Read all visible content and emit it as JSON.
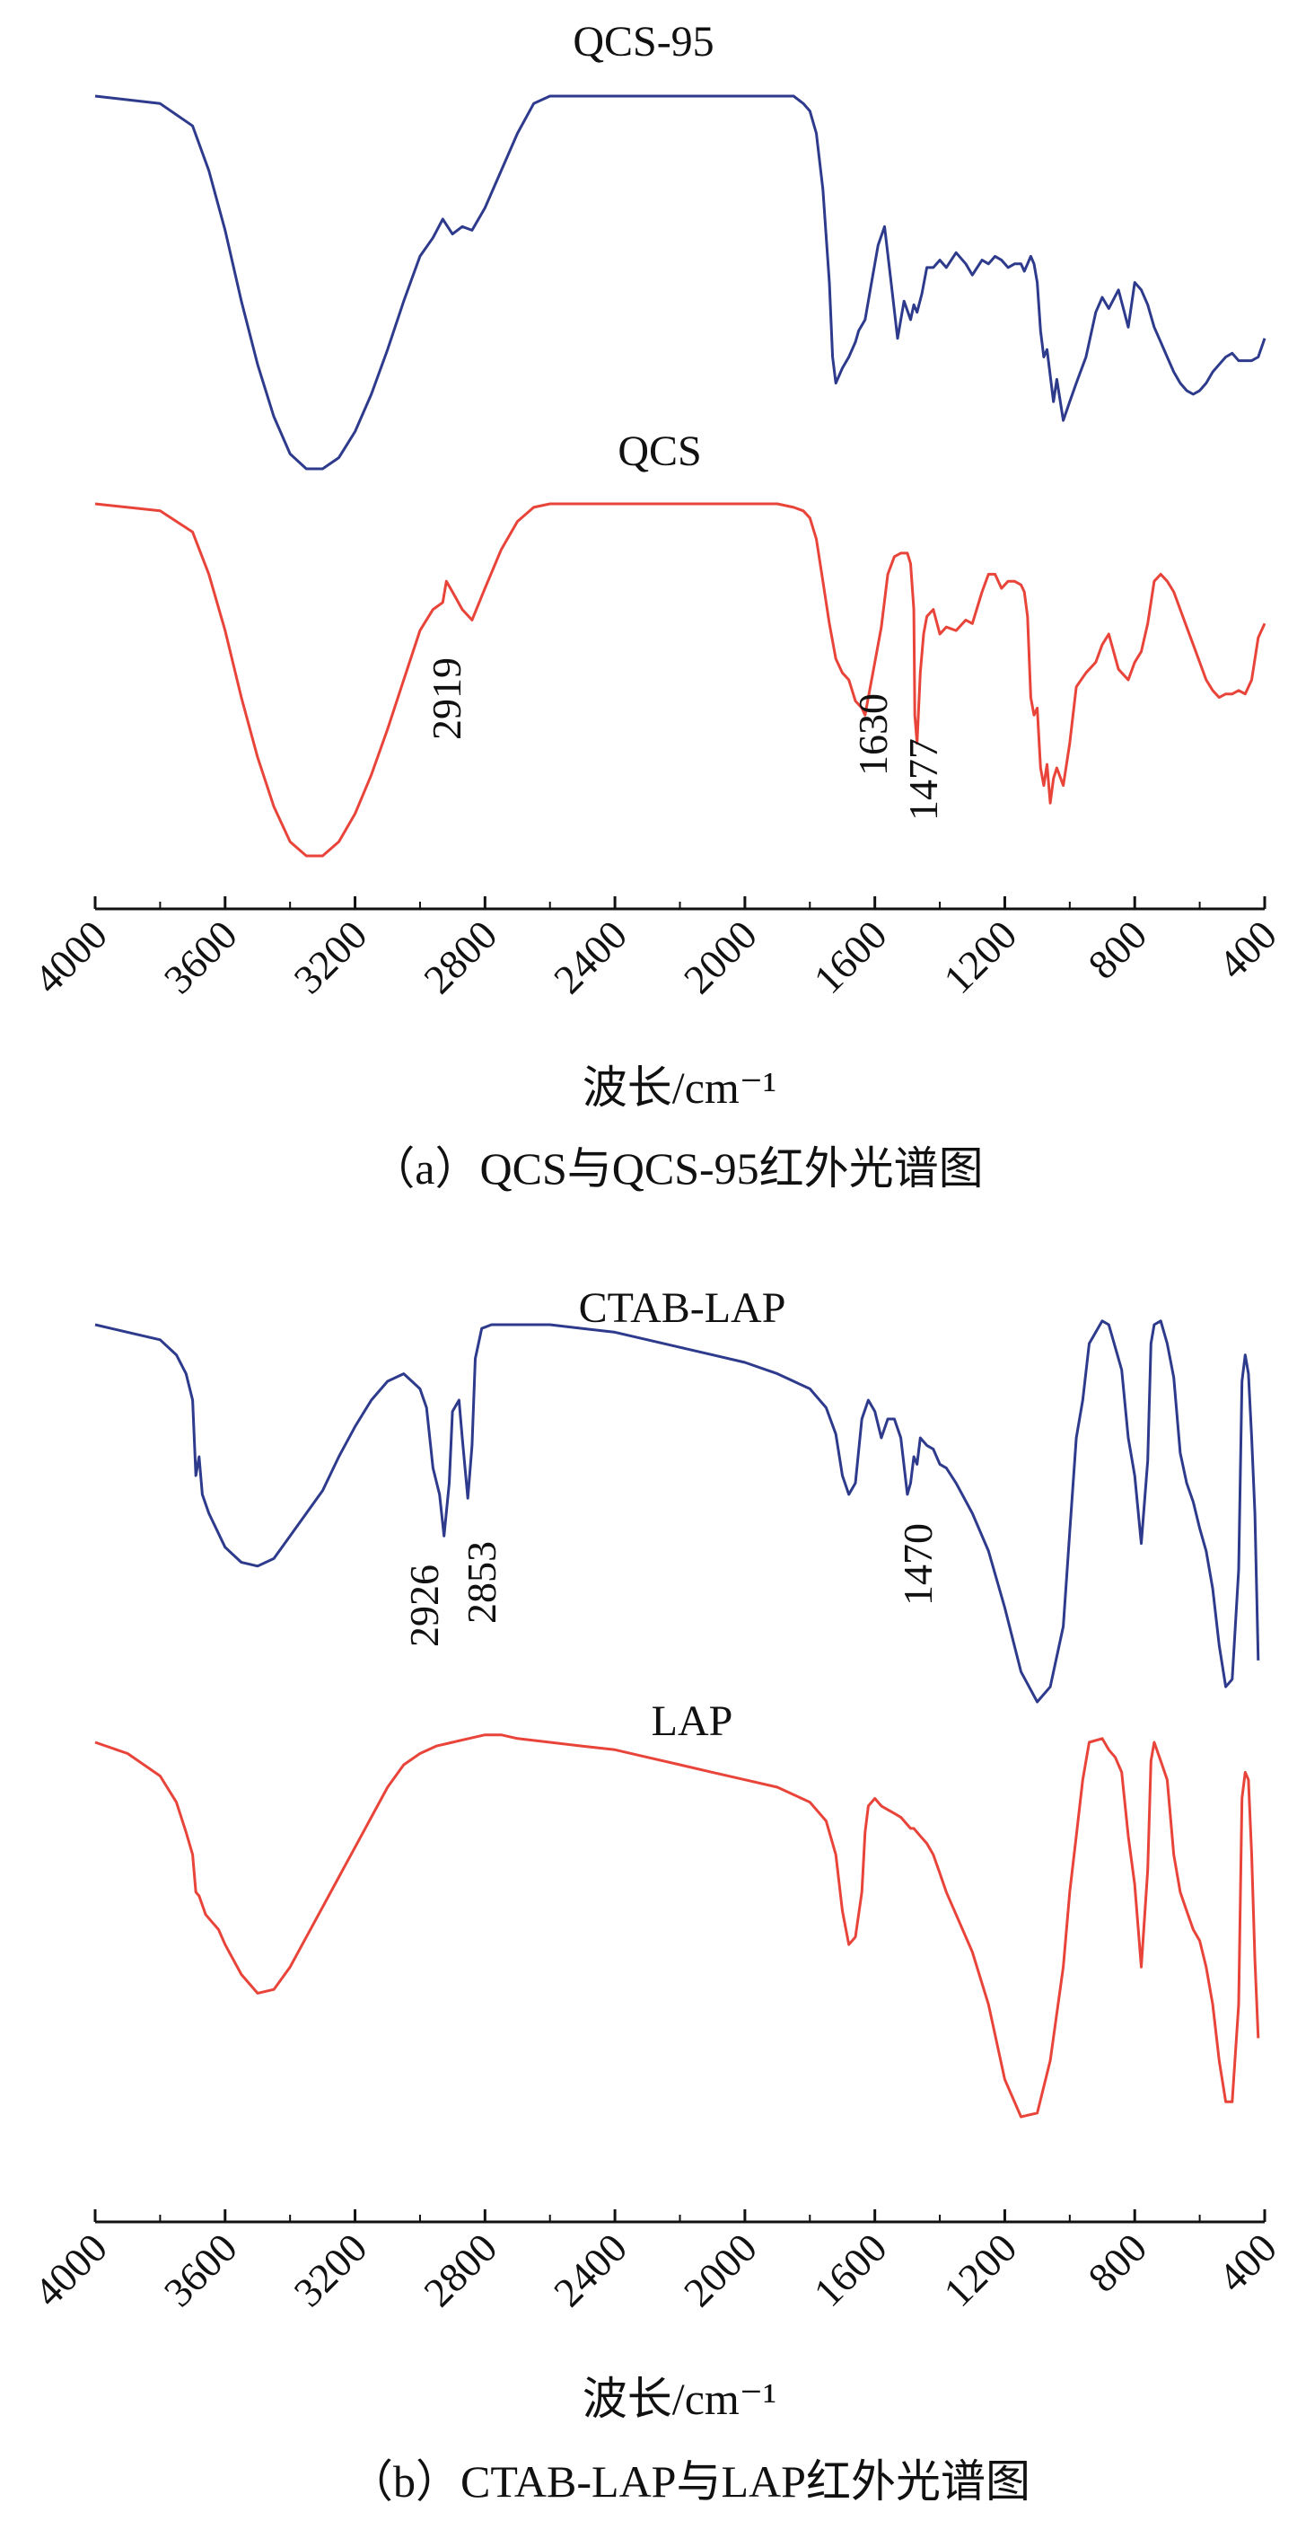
{
  "chart_data": [
    {
      "type": "line",
      "panel_caption": "（a）QCS与QCS-95红外光谱图",
      "xlabel": "波长/cm⁻¹",
      "ylabel": "",
      "xlim": [
        4000,
        400
      ],
      "x_reversed": true,
      "grid": false,
      "x_ticks": [
        "4000",
        "3600",
        "3200",
        "2800",
        "2400",
        "2000",
        "1600",
        "1200",
        "800",
        "400"
      ],
      "colors": {
        "QCS-95": "#2e3a8c",
        "QCS": "#e8443a"
      },
      "series": [
        {
          "name": "QCS-95",
          "x": [
            4000,
            3800,
            3700,
            3650,
            3600,
            3550,
            3500,
            3450,
            3400,
            3350,
            3300,
            3250,
            3200,
            3150,
            3100,
            3050,
            3000,
            2960,
            2930,
            2900,
            2870,
            2840,
            2800,
            2750,
            2700,
            2650,
            2600,
            2550,
            2500,
            2450,
            2400,
            2350,
            2300,
            2250,
            2200,
            2150,
            2100,
            2050,
            2000,
            1950,
            1900,
            1850,
            1820,
            1800,
            1780,
            1760,
            1740,
            1730,
            1720,
            1700,
            1680,
            1660,
            1650,
            1630,
            1610,
            1590,
            1570,
            1550,
            1530,
            1510,
            1490,
            1480,
            1470,
            1455,
            1440,
            1420,
            1400,
            1380,
            1350,
            1320,
            1300,
            1270,
            1250,
            1230,
            1210,
            1190,
            1170,
            1150,
            1140,
            1130,
            1120,
            1110,
            1100,
            1090,
            1080,
            1070,
            1060,
            1050,
            1040,
            1020,
            1000,
            980,
            950,
            920,
            900,
            880,
            850,
            820,
            800,
            780,
            760,
            740,
            720,
            700,
            680,
            660,
            640,
            620,
            600,
            580,
            560,
            540,
            520,
            500,
            480,
            460,
            440,
            420,
            400
          ],
          "y": [
            0.0,
            0.02,
            0.08,
            0.2,
            0.36,
            0.55,
            0.72,
            0.86,
            0.96,
            1.0,
            1.0,
            0.97,
            0.9,
            0.8,
            0.68,
            0.55,
            0.43,
            0.38,
            0.33,
            0.37,
            0.35,
            0.36,
            0.3,
            0.2,
            0.1,
            0.02,
            0.0,
            0.0,
            0.0,
            0.0,
            0.0,
            0.0,
            0.0,
            0.0,
            0.0,
            0.0,
            0.0,
            0.0,
            0.0,
            0.0,
            0.0,
            0.0,
            0.02,
            0.04,
            0.1,
            0.25,
            0.5,
            0.7,
            0.77,
            0.73,
            0.7,
            0.66,
            0.63,
            0.6,
            0.5,
            0.4,
            0.35,
            0.5,
            0.65,
            0.55,
            0.6,
            0.56,
            0.58,
            0.53,
            0.46,
            0.46,
            0.44,
            0.46,
            0.42,
            0.45,
            0.48,
            0.44,
            0.45,
            0.43,
            0.44,
            0.46,
            0.45,
            0.45,
            0.47,
            0.45,
            0.43,
            0.45,
            0.5,
            0.63,
            0.7,
            0.68,
            0.75,
            0.82,
            0.76,
            0.87,
            0.82,
            0.77,
            0.7,
            0.58,
            0.54,
            0.57,
            0.52,
            0.62,
            0.5,
            0.52,
            0.56,
            0.62,
            0.66,
            0.7,
            0.74,
            0.77,
            0.79,
            0.8,
            0.79,
            0.77,
            0.74,
            0.72,
            0.7,
            0.69,
            0.71,
            0.71,
            0.71,
            0.7,
            0.65
          ]
        },
        {
          "name": "QCS",
          "x": [
            4000,
            3800,
            3700,
            3650,
            3600,
            3550,
            3500,
            3450,
            3400,
            3350,
            3300,
            3250,
            3200,
            3150,
            3100,
            3050,
            3000,
            2960,
            2930,
            2919,
            2900,
            2870,
            2840,
            2800,
            2750,
            2700,
            2650,
            2600,
            2550,
            2500,
            2450,
            2400,
            2350,
            2300,
            2250,
            2200,
            2150,
            2100,
            2050,
            2000,
            1950,
            1900,
            1850,
            1820,
            1800,
            1780,
            1760,
            1740,
            1720,
            1700,
            1680,
            1660,
            1640,
            1630,
            1620,
            1600,
            1580,
            1560,
            1540,
            1520,
            1500,
            1490,
            1480,
            1477,
            1470,
            1460,
            1450,
            1440,
            1420,
            1400,
            1380,
            1350,
            1320,
            1300,
            1270,
            1250,
            1230,
            1210,
            1190,
            1170,
            1150,
            1140,
            1130,
            1120,
            1110,
            1100,
            1090,
            1080,
            1070,
            1060,
            1050,
            1040,
            1020,
            1000,
            980,
            950,
            920,
            900,
            880,
            850,
            820,
            800,
            780,
            760,
            740,
            720,
            700,
            680,
            660,
            640,
            620,
            600,
            580,
            560,
            540,
            520,
            500,
            480,
            460,
            440,
            420,
            400
          ],
          "y": [
            0.0,
            0.02,
            0.08,
            0.2,
            0.36,
            0.55,
            0.72,
            0.86,
            0.96,
            1.0,
            1.0,
            0.96,
            0.88,
            0.77,
            0.64,
            0.5,
            0.36,
            0.3,
            0.28,
            0.22,
            0.25,
            0.3,
            0.33,
            0.24,
            0.13,
            0.05,
            0.01,
            0.0,
            0.0,
            0.0,
            0.0,
            0.0,
            0.0,
            0.0,
            0.0,
            0.0,
            0.0,
            0.0,
            0.0,
            0.0,
            0.0,
            0.0,
            0.01,
            0.02,
            0.04,
            0.1,
            0.22,
            0.34,
            0.44,
            0.48,
            0.5,
            0.56,
            0.58,
            0.6,
            0.55,
            0.45,
            0.35,
            0.2,
            0.15,
            0.14,
            0.14,
            0.17,
            0.3,
            0.6,
            0.68,
            0.48,
            0.37,
            0.32,
            0.3,
            0.37,
            0.35,
            0.36,
            0.33,
            0.34,
            0.25,
            0.2,
            0.2,
            0.24,
            0.22,
            0.22,
            0.23,
            0.25,
            0.32,
            0.55,
            0.6,
            0.58,
            0.75,
            0.8,
            0.74,
            0.85,
            0.78,
            0.75,
            0.8,
            0.68,
            0.52,
            0.48,
            0.45,
            0.4,
            0.37,
            0.47,
            0.5,
            0.45,
            0.42,
            0.34,
            0.22,
            0.2,
            0.22,
            0.25,
            0.3,
            0.35,
            0.4,
            0.45,
            0.5,
            0.53,
            0.55,
            0.54,
            0.54,
            0.53,
            0.54,
            0.5,
            0.38,
            0.34
          ]
        }
      ],
      "annotations": [
        "QCS-95",
        "QCS",
        "2919",
        "1630",
        "1477"
      ]
    },
    {
      "type": "line",
      "panel_caption": "（b）CTAB-LAP与LAP红外光谱图",
      "xlabel": "波长/cm⁻¹",
      "ylabel": "",
      "xlim": [
        4000,
        400
      ],
      "x_reversed": true,
      "grid": false,
      "x_ticks": [
        "4000",
        "3600",
        "3200",
        "2800",
        "2400",
        "2000",
        "1600",
        "1200",
        "800",
        "400"
      ],
      "colors": {
        "CTAB-LAP": "#2e3a8c",
        "LAP": "#e8443a"
      },
      "series": [
        {
          "name": "CTAB-LAP",
          "x": [
            4000,
            3900,
            3800,
            3750,
            3720,
            3700,
            3690,
            3680,
            3670,
            3650,
            3600,
            3550,
            3500,
            3450,
            3400,
            3350,
            3300,
            3250,
            3200,
            3150,
            3100,
            3050,
            3000,
            2980,
            2960,
            2940,
            2926,
            2910,
            2900,
            2880,
            2870,
            2853,
            2840,
            2830,
            2810,
            2780,
            2750,
            2700,
            2600,
            2500,
            2400,
            2300,
            2200,
            2100,
            2000,
            1900,
            1800,
            1750,
            1720,
            1700,
            1680,
            1660,
            1640,
            1620,
            1600,
            1580,
            1560,
            1540,
            1520,
            1500,
            1490,
            1480,
            1470,
            1460,
            1440,
            1420,
            1400,
            1380,
            1350,
            1300,
            1250,
            1200,
            1150,
            1100,
            1060,
            1020,
            1000,
            980,
            960,
            940,
            900,
            880,
            860,
            840,
            820,
            800,
            780,
            760,
            750,
            740,
            720,
            700,
            680,
            660,
            640,
            620,
            600,
            580,
            560,
            540,
            520,
            500,
            480,
            470,
            460,
            450,
            440,
            430,
            420
          ],
          "y": [
            0.0,
            0.02,
            0.04,
            0.08,
            0.13,
            0.2,
            0.4,
            0.35,
            0.45,
            0.5,
            0.59,
            0.63,
            0.64,
            0.62,
            0.56,
            0.5,
            0.44,
            0.35,
            0.27,
            0.2,
            0.15,
            0.13,
            0.17,
            0.22,
            0.38,
            0.45,
            0.56,
            0.42,
            0.23,
            0.2,
            0.3,
            0.46,
            0.32,
            0.09,
            0.01,
            0.0,
            0.0,
            0.0,
            0.0,
            0.01,
            0.02,
            0.04,
            0.06,
            0.08,
            0.1,
            0.13,
            0.17,
            0.22,
            0.29,
            0.4,
            0.45,
            0.42,
            0.25,
            0.2,
            0.23,
            0.3,
            0.25,
            0.25,
            0.3,
            0.45,
            0.42,
            0.35,
            0.37,
            0.3,
            0.32,
            0.33,
            0.37,
            0.38,
            0.42,
            0.5,
            0.6,
            0.75,
            0.92,
            1.0,
            0.96,
            0.8,
            0.55,
            0.3,
            0.2,
            0.05,
            -0.01,
            0.0,
            0.06,
            0.12,
            0.3,
            0.4,
            0.58,
            0.36,
            0.05,
            0.0,
            -0.01,
            0.05,
            0.14,
            0.34,
            0.42,
            0.47,
            0.54,
            0.6,
            0.7,
            0.85,
            0.96,
            0.94,
            0.65,
            0.15,
            0.08,
            0.13,
            0.3,
            0.5,
            0.89
          ]
        },
        {
          "name": "LAP",
          "x": [
            4000,
            3900,
            3800,
            3750,
            3720,
            3700,
            3690,
            3680,
            3660,
            3640,
            3620,
            3600,
            3550,
            3500,
            3450,
            3400,
            3350,
            3300,
            3250,
            3200,
            3150,
            3100,
            3050,
            3000,
            2950,
            2900,
            2850,
            2800,
            2750,
            2700,
            2600,
            2500,
            2400,
            2300,
            2200,
            2100,
            2000,
            1900,
            1800,
            1750,
            1720,
            1700,
            1680,
            1660,
            1640,
            1630,
            1620,
            1600,
            1580,
            1560,
            1540,
            1520,
            1500,
            1490,
            1480,
            1470,
            1460,
            1440,
            1420,
            1400,
            1380,
            1350,
            1300,
            1250,
            1200,
            1150,
            1100,
            1060,
            1020,
            1000,
            980,
            960,
            940,
            900,
            880,
            860,
            840,
            820,
            800,
            780,
            760,
            750,
            740,
            720,
            700,
            680,
            660,
            640,
            620,
            600,
            580,
            560,
            540,
            520,
            500,
            480,
            470,
            460,
            450,
            440,
            430,
            420
          ],
          "y": [
            0.0,
            0.03,
            0.09,
            0.16,
            0.24,
            0.3,
            0.4,
            0.41,
            0.46,
            0.48,
            0.5,
            0.54,
            0.62,
            0.67,
            0.66,
            0.6,
            0.52,
            0.44,
            0.36,
            0.28,
            0.2,
            0.12,
            0.06,
            0.03,
            0.01,
            0.0,
            -0.01,
            -0.02,
            -0.02,
            -0.01,
            0.0,
            0.01,
            0.02,
            0.04,
            0.06,
            0.08,
            0.1,
            0.12,
            0.16,
            0.21,
            0.3,
            0.45,
            0.54,
            0.52,
            0.4,
            0.24,
            0.17,
            0.15,
            0.17,
            0.18,
            0.19,
            0.2,
            0.22,
            0.23,
            0.23,
            0.24,
            0.25,
            0.27,
            0.3,
            0.35,
            0.4,
            0.46,
            0.56,
            0.7,
            0.9,
            1.0,
            0.99,
            0.85,
            0.6,
            0.4,
            0.25,
            0.1,
            0.0,
            -0.01,
            0.02,
            0.04,
            0.08,
            0.25,
            0.38,
            0.6,
            0.34,
            0.05,
            0.0,
            0.05,
            0.1,
            0.3,
            0.4,
            0.45,
            0.5,
            0.53,
            0.6,
            0.7,
            0.85,
            0.96,
            0.96,
            0.7,
            0.15,
            0.08,
            0.1,
            0.3,
            0.58,
            0.79
          ]
        }
      ],
      "annotations": [
        "CTAB-LAP",
        "LAP",
        "2926",
        "2853",
        "1470"
      ]
    }
  ]
}
